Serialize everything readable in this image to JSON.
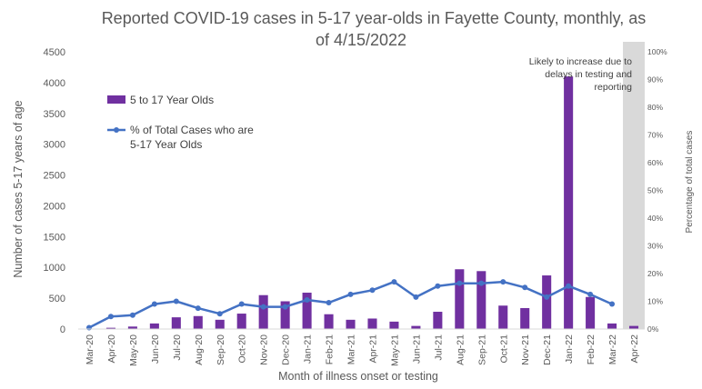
{
  "chart_data": {
    "type": "bar",
    "title_lines": [
      "Reported COVID-19 cases in 5-17 year-olds in Fayette County, monthly, as",
      "of 4/15/2022"
    ],
    "xlabel": "Month of illness onset or testing",
    "ylabel": "Number of cases 5-17 years of age",
    "y2label": "Percentage of total cases",
    "ylim": [
      0,
      4500
    ],
    "y2lim": [
      0,
      1.0
    ],
    "yticks": [
      "0",
      "500",
      "1000",
      "1500",
      "2000",
      "2500",
      "3000",
      "3500",
      "4000",
      "4500"
    ],
    "y2ticks": [
      "0%",
      "10%",
      "20%",
      "30%",
      "40%",
      "50%",
      "60%",
      "70%",
      "80%",
      "90%",
      "100%"
    ],
    "categories": [
      "Mar-20",
      "Apr-20",
      "May-20",
      "Jun-20",
      "Jul-20",
      "Aug-20",
      "Sep-20",
      "Oct-20",
      "Nov-20",
      "Dec-20",
      "Jan-21",
      "Feb-21",
      "Mar-21",
      "Apr-21",
      "May-21",
      "Jun-21",
      "Jul-21",
      "Aug-21",
      "Sep-21",
      "Oct-21",
      "Nov-21",
      "Dec-21",
      "Jan-22",
      "Feb-22",
      "Mar-22",
      "Apr-22"
    ],
    "series": [
      {
        "name": "5 to 17 Year Olds",
        "type": "bar",
        "axis": "left",
        "color": "#7030A0",
        "values": [
          5,
          20,
          40,
          90,
          190,
          210,
          150,
          250,
          550,
          450,
          590,
          240,
          150,
          170,
          120,
          50,
          280,
          970,
          940,
          380,
          340,
          870,
          4100,
          520,
          90,
          50
        ]
      },
      {
        "name": "% of Total Cases who are 5-17 Year Olds",
        "legend_lines": [
          "% of Total Cases who are",
          "5-17 Year Olds"
        ],
        "type": "line",
        "axis": "right",
        "color": "#4472C4",
        "values": [
          0.005,
          0.045,
          0.05,
          0.09,
          0.1,
          0.075,
          0.055,
          0.09,
          0.08,
          0.08,
          0.105,
          0.095,
          0.125,
          0.14,
          0.17,
          0.115,
          0.155,
          0.165,
          0.165,
          0.17,
          0.15,
          0.115,
          0.155,
          0.125,
          0.09,
          null
        ]
      }
    ],
    "shaded_category": "Apr-22",
    "shade_color": "#D9D9D9",
    "annotation_lines": [
      "Likely to increase due to",
      "delays in testing and",
      "reporting"
    ],
    "legend_position": "top-left",
    "grid": false
  }
}
